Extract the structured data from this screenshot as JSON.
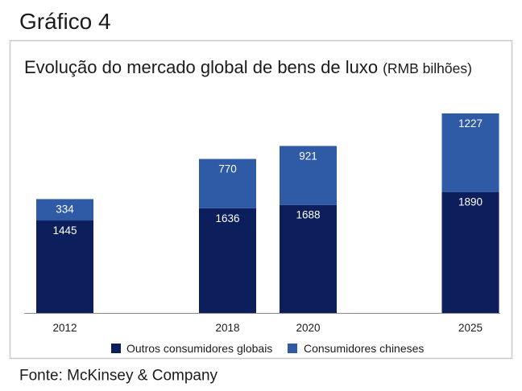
{
  "figure": {
    "label": "Gráfico 4",
    "source": "Fonte: McKinsey & Company"
  },
  "chart_data": {
    "type": "bar",
    "stacked": true,
    "title": "Evolução do mercado global de bens de luxo",
    "subtitle": "(RMB bilhões)",
    "xlabel": "",
    "ylabel": "",
    "categories": [
      "2012",
      "2018",
      "2020",
      "2025"
    ],
    "series": [
      {
        "name": "Outros consumidores globais",
        "values": [
          1445,
          1636,
          1688,
          1890
        ],
        "color": "#0c1e5b"
      },
      {
        "name": "Consumidores chineses",
        "values": [
          334,
          770,
          921,
          1227
        ],
        "color": "#2f5aa6"
      }
    ],
    "data_labels": true,
    "grid": false,
    "legend": "bottom"
  }
}
